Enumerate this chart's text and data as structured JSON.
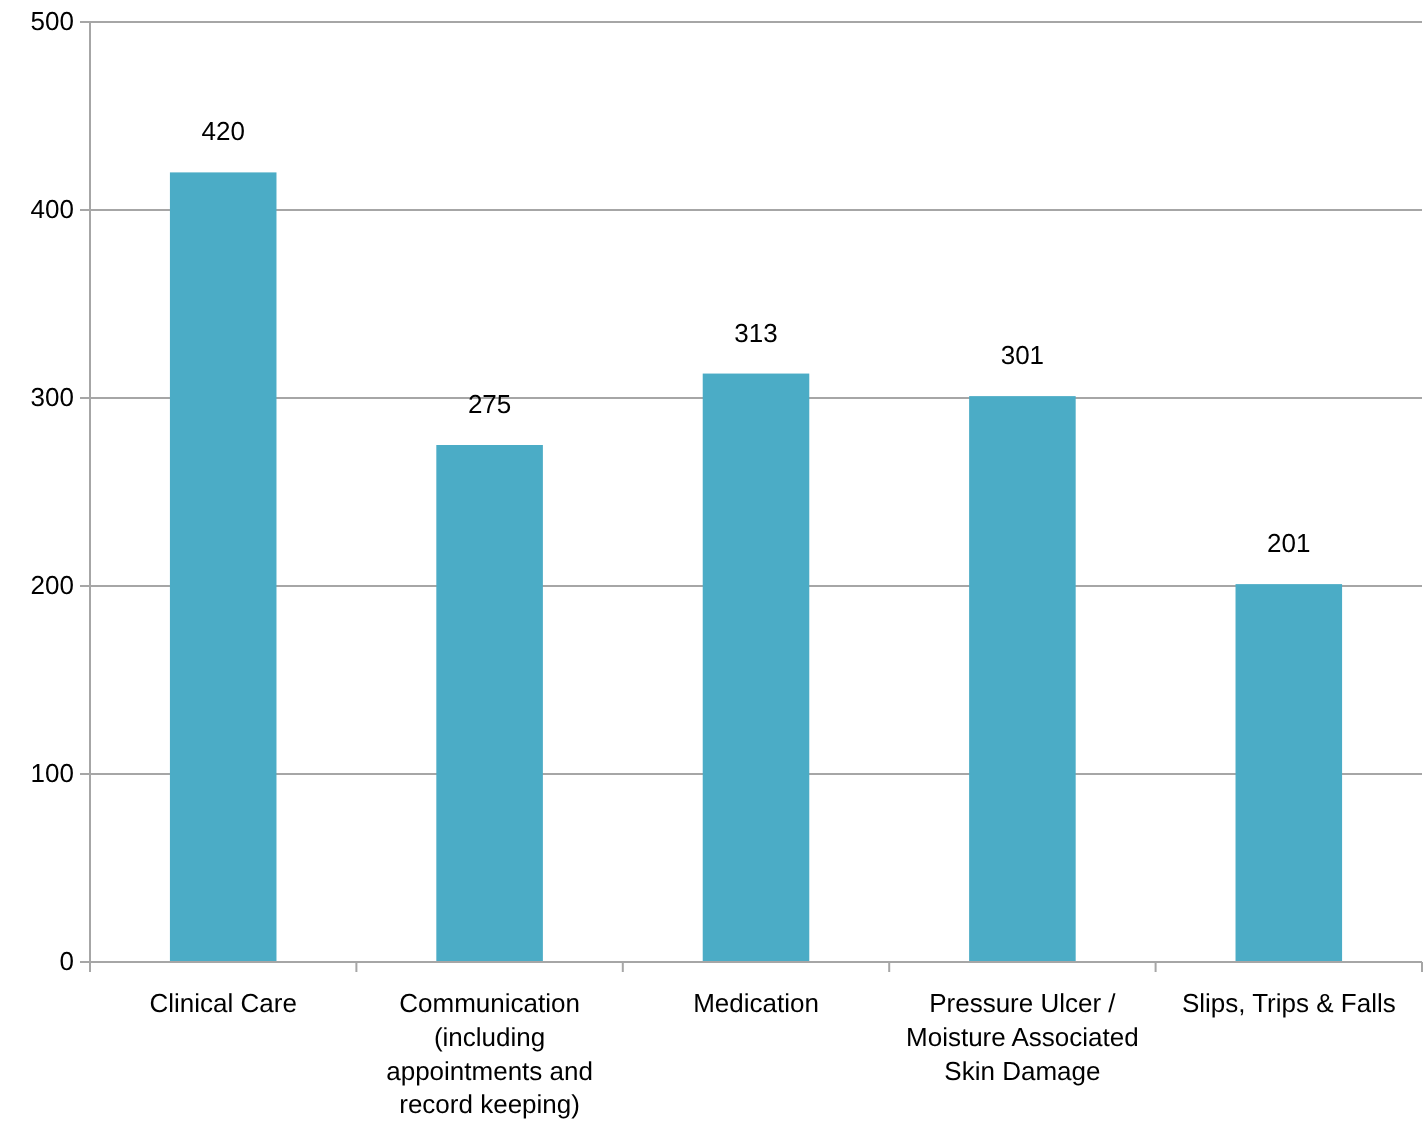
{
  "chart_data": {
    "type": "bar",
    "categories": [
      "Clinical Care",
      "Communication (including appointments and record keeping)",
      "Medication",
      "Pressure Ulcer / Moisture Associated Skin Damage",
      "Slips, Trips & Falls"
    ],
    "values": [
      420,
      275,
      313,
      301,
      201
    ],
    "color": "#4bacc6",
    "ylim": [
      0,
      500
    ],
    "yticks": [
      0,
      100,
      200,
      300,
      400,
      500
    ],
    "grid": "y",
    "data_labels": true
  }
}
